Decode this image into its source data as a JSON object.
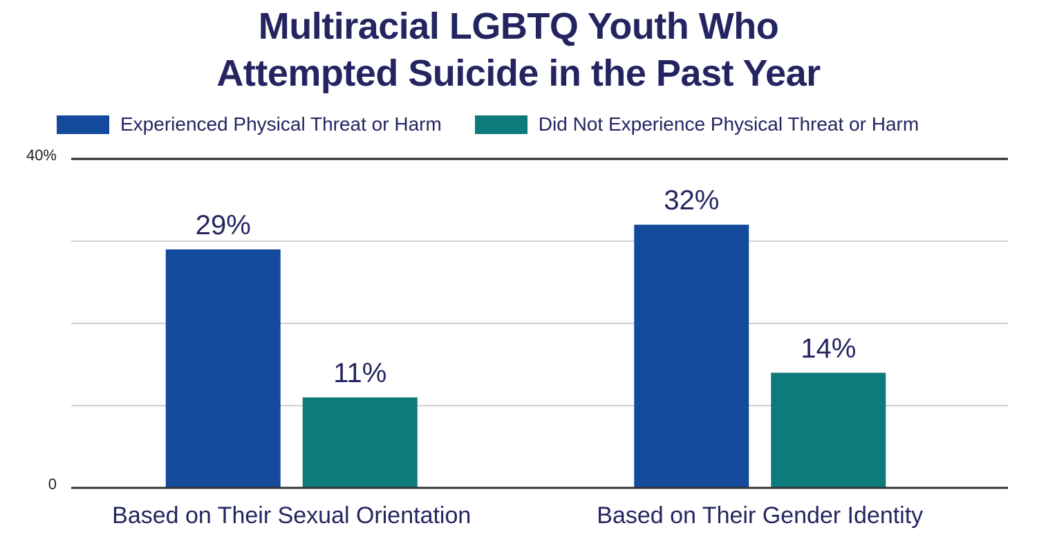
{
  "chart_data": {
    "type": "bar",
    "title_lines": [
      "Multiracial LGBTQ Youth Who",
      "Attempted Suicide in the Past Year"
    ],
    "categories": [
      "Based on Their Sexual Orientation",
      "Based on Their Gender Identity"
    ],
    "series": [
      {
        "name": "Experienced Physical Threat or Harm",
        "values": [
          29,
          32
        ],
        "labels": [
          "29%",
          "32%"
        ],
        "color": "#134A9B"
      },
      {
        "name": "Did Not Experience Physical Threat or Harm",
        "values": [
          11,
          14
        ],
        "labels": [
          "11%",
          "14%"
        ],
        "color": "#0E7A7C"
      }
    ],
    "ylim": [
      0,
      40
    ],
    "ytick_labels": [
      "0",
      "40%"
    ],
    "gridlines": [
      10,
      20,
      30
    ],
    "grid": true,
    "legend_placement": "top",
    "text_color": "#242560"
  }
}
